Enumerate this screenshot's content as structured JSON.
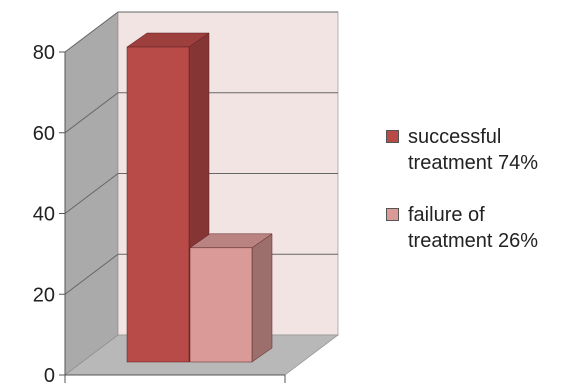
{
  "chart_data": {
    "type": "bar",
    "style": "3d-column",
    "categories": [
      ""
    ],
    "series": [
      {
        "name": "successful treatment 74%",
        "values": [
          80
        ],
        "color": "#b84a48"
      },
      {
        "name": "failure of treatment 26%",
        "values": [
          29
        ],
        "color": "#d99a98"
      }
    ],
    "ylim": [
      0,
      80
    ],
    "yticks": [
      0,
      20,
      40,
      60,
      80
    ],
    "grid": true,
    "legend": "right",
    "colors": {
      "wall": "#f3e4e4",
      "side_wall": "#aaaaaa",
      "floor": "#b8b8b8",
      "gridline": "#666666"
    }
  }
}
